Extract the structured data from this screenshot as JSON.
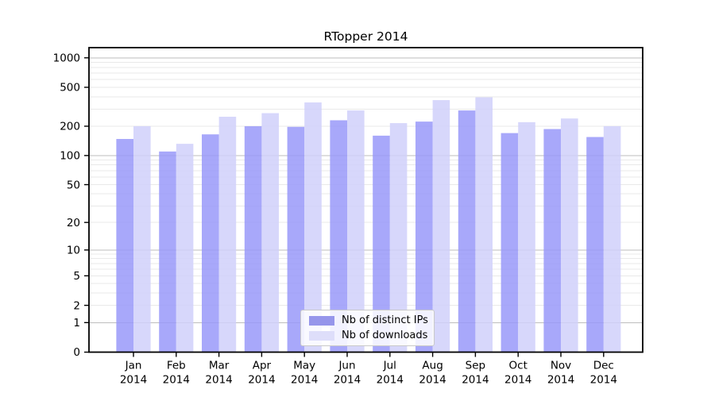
{
  "chart_data": {
    "type": "bar",
    "title": "RTopper 2014",
    "scale": "log10(value+1)",
    "categories": [
      "Jan",
      "Feb",
      "Mar",
      "Apr",
      "May",
      "Jun",
      "Jul",
      "Aug",
      "Sep",
      "Oct",
      "Nov",
      "Dec"
    ],
    "year_label": "2014",
    "series": [
      {
        "name": "Nb of distinct IPs",
        "color": "#9696eb",
        "bar_fill": "rgba(153,153,249,0.85)",
        "values": [
          148,
          110,
          165,
          200,
          197,
          230,
          160,
          223,
          290,
          170,
          187,
          155
        ]
      },
      {
        "name": "Nb of downloads",
        "color": "#dedefa",
        "bar_fill": "rgba(208,208,250,0.85)",
        "values": [
          200,
          132,
          250,
          272,
          350,
          290,
          215,
          370,
          395,
          220,
          240,
          200
        ]
      }
    ],
    "yticks": [
      0,
      1,
      2,
      5,
      10,
      20,
      50,
      100,
      200,
      500,
      1000
    ],
    "ylim": [
      0,
      1270
    ],
    "legend_position": "lower center",
    "grid": {
      "major_color": "#bdbdbd",
      "minor_color": "#e9e9e9"
    }
  }
}
